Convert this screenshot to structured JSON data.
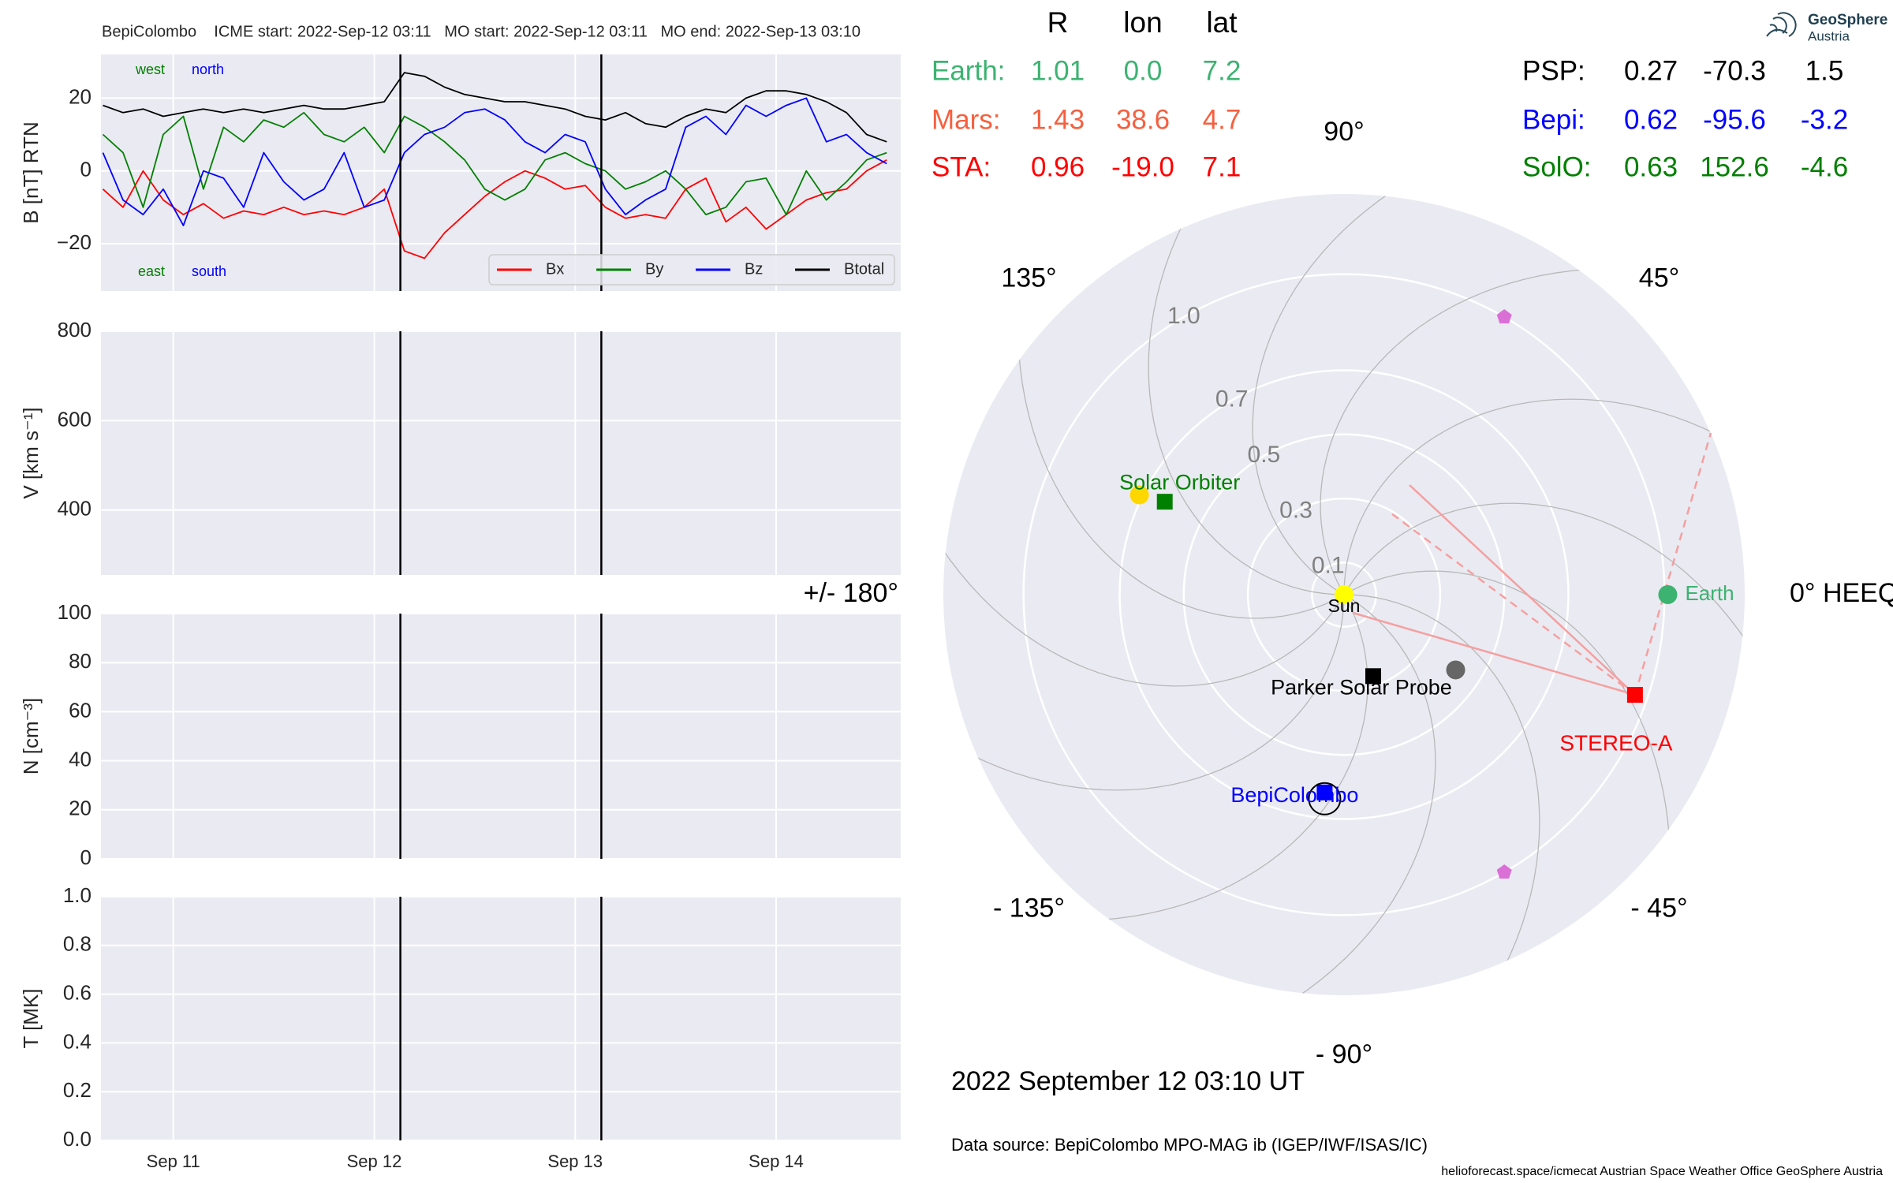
{
  "chart_data": [
    {
      "type": "line",
      "title": "BepiColombo    ICME start: 2022-Sep-12 03:11   MO start: 2022-Sep-12 03:11   MO end: 2022-Sep-13 03:10",
      "ylabel": "B [nT] RTN",
      "xlim": [
        10.64,
        14.62
      ],
      "xticks": [
        11,
        12,
        13,
        14
      ],
      "ylim": [
        -33,
        32
      ],
      "yticks": [
        {
          "value": -20,
          "label": "−20"
        },
        0,
        20
      ],
      "grid": true,
      "legend": "lower right",
      "vlines": [
        12.13,
        13.13
      ],
      "annotations": [
        {
          "text": "west",
          "color": "#008000"
        },
        {
          "text": "north",
          "color": "#0000ff"
        },
        {
          "text": "east",
          "color": "#008000"
        },
        {
          "text": "south",
          "color": "#0000ff"
        }
      ],
      "x": [
        10.65,
        10.75,
        10.85,
        10.95,
        11.05,
        11.15,
        11.25,
        11.35,
        11.45,
        11.55,
        11.65,
        11.75,
        11.85,
        11.95,
        12.05,
        12.15,
        12.25,
        12.35,
        12.45,
        12.55,
        12.65,
        12.75,
        12.85,
        12.95,
        13.05,
        13.15,
        13.25,
        13.35,
        13.45,
        13.55,
        13.65,
        13.75,
        13.85,
        13.95,
        14.05,
        14.15,
        14.25,
        14.35,
        14.45,
        14.55
      ],
      "series": [
        {
          "name": "Bx",
          "color": "#ff0000",
          "values": [
            -5,
            -10,
            0,
            -8,
            -12,
            -9,
            -13,
            -11,
            -12,
            -10,
            -12,
            -11,
            -12,
            -10,
            -5,
            -22,
            -24,
            -17,
            -12,
            -7,
            -3,
            0,
            -2,
            -5,
            -4,
            -10,
            -13,
            -12,
            -13,
            -5,
            -2,
            -14,
            -10,
            -16,
            -12,
            -8,
            -6,
            -5,
            0,
            3
          ]
        },
        {
          "name": "By",
          "color": "#008000",
          "values": [
            10,
            5,
            -10,
            10,
            15,
            -5,
            12,
            8,
            14,
            12,
            16,
            10,
            8,
            12,
            5,
            15,
            12,
            8,
            3,
            -5,
            -8,
            -5,
            3,
            5,
            2,
            0,
            -5,
            -3,
            0,
            -5,
            -12,
            -10,
            -3,
            -2,
            -12,
            0,
            -8,
            -3,
            3,
            5
          ]
        },
        {
          "name": "Bz",
          "color": "#0000ff",
          "values": [
            5,
            -8,
            -12,
            -5,
            -15,
            0,
            -2,
            -10,
            5,
            -3,
            -8,
            -5,
            5,
            -10,
            -8,
            5,
            10,
            12,
            16,
            17,
            14,
            8,
            5,
            10,
            8,
            -5,
            -12,
            -8,
            -5,
            12,
            15,
            10,
            18,
            15,
            18,
            20,
            8,
            10,
            5,
            2
          ]
        },
        {
          "name": "Btotal",
          "color": "#000000",
          "values": [
            18,
            16,
            17,
            15,
            16,
            17,
            16,
            17,
            16,
            17,
            18,
            17,
            17,
            18,
            19,
            27,
            26,
            23,
            21,
            20,
            19,
            19,
            18,
            17,
            15,
            14,
            16,
            13,
            12,
            15,
            17,
            16,
            20,
            22,
            22,
            21,
            19,
            16,
            10,
            8
          ]
        }
      ]
    },
    {
      "type": "line",
      "ylabel": "V [km s⁻¹]",
      "xlim": [
        10.64,
        14.62
      ],
      "xticks": [
        11,
        12,
        13,
        14
      ],
      "ylim": [
        255,
        800
      ],
      "yticks": [
        400,
        600,
        800
      ],
      "grid": true,
      "vlines": [
        12.13,
        13.13
      ]
    },
    {
      "type": "line",
      "ylabel": "N [cm⁻³]",
      "xlim": [
        10.64,
        14.62
      ],
      "xticks": [
        11,
        12,
        13,
        14
      ],
      "ylim": [
        0,
        100
      ],
      "yticks": [
        0,
        20,
        40,
        60,
        80,
        100
      ],
      "grid": true,
      "vlines": [
        12.13,
        13.13
      ]
    },
    {
      "type": "line",
      "ylabel": "T [MK]",
      "xlim": [
        10.64,
        14.62
      ],
      "xticks": [
        {
          "value": 11,
          "label": "Sep 11"
        },
        {
          "value": 12,
          "label": "Sep 12"
        },
        {
          "value": 13,
          "label": "Sep 13"
        },
        {
          "value": 14,
          "label": "Sep 14"
        }
      ],
      "ylim": [
        0,
        1
      ],
      "yticks": [
        {
          "value": 0,
          "label": "0.0"
        },
        0.2,
        0.4,
        0.6,
        0.8,
        {
          "value": 1,
          "label": "1.0"
        }
      ],
      "grid": true,
      "vlines": [
        12.13,
        13.13
      ]
    },
    {
      "type": "polar",
      "rlim": [
        0,
        1.25
      ],
      "rticks": [
        0.1,
        0.3,
        0.5,
        0.7,
        {
          "value": 1,
          "label": "1.0"
        }
      ],
      "thetaticks": [
        {
          "value": 0,
          "label": "0° HEEQ"
        },
        {
          "value": 45,
          "label": "45°"
        },
        {
          "value": 90,
          "label": "90°"
        },
        {
          "value": 135,
          "label": "135°"
        },
        {
          "value": 180,
          "label": "+/- 180°"
        },
        {
          "value": -135,
          "label": "- 135°"
        },
        {
          "value": -90,
          "label": "- 90°"
        },
        {
          "value": -45,
          "label": "- 45°"
        }
      ],
      "grid": true,
      "points": [
        {
          "label": "Sun",
          "r": 0,
          "lon": 0,
          "color": "#ffff00",
          "marker": "circle"
        },
        {
          "r": 0.71,
          "lon": 154,
          "color": "#ffd700",
          "marker": "circle"
        },
        {
          "r": 0.42,
          "lon": -34,
          "color": "#666666",
          "marker": "circle"
        },
        {
          "label": "Earth",
          "r": 1.01,
          "lon": 0,
          "color": "#3cb371",
          "marker": "circle"
        },
        {
          "label": "STEREO-A",
          "r": 0.96,
          "lon": -19,
          "color": "#ff0000",
          "marker": "square"
        },
        {
          "label": "Parker Solar Probe",
          "r": 0.27,
          "lon": -70.3,
          "color": "#000000",
          "marker": "square"
        },
        {
          "label": "BepiColombo",
          "r": 0.62,
          "lon": -95.6,
          "color": "#0000ff",
          "marker": "square",
          "ring": true
        },
        {
          "label": "Solar Orbiter",
          "r": 0.63,
          "lon": 152.6,
          "color": "#008000",
          "marker": "square"
        },
        {
          "r": 1,
          "lon": 60,
          "color": "#da70d6",
          "marker": "pentagon"
        },
        {
          "r": 1,
          "lon": -60,
          "color": "#da70d6",
          "marker": "pentagon"
        }
      ]
    }
  ],
  "table": {
    "columns": [
      "R",
      "lon",
      "lat"
    ],
    "rows": [
      {
        "name": "Earth:",
        "color": "#3cb371",
        "values": [
          "1.01",
          "0.0",
          "7.2"
        ]
      },
      {
        "name": "Mars:",
        "color": "#f5603f",
        "values": [
          "1.43",
          "38.6",
          "4.7"
        ]
      },
      {
        "name": "STA:",
        "color": "#ff0000",
        "values": [
          "0.96",
          "-19.0",
          "7.1"
        ]
      },
      {
        "name": "PSP:",
        "color": "#000000",
        "values": [
          "0.27",
          "-70.3",
          "1.5"
        ]
      },
      {
        "name": "Bepi:",
        "color": "#0000ff",
        "values": [
          "0.62",
          "-95.6",
          "-3.2"
        ]
      },
      {
        "name": "SolO:",
        "color": "#008000",
        "values": [
          "0.63",
          "152.6",
          "-4.6"
        ]
      }
    ]
  },
  "timestamp": "2022 September 12  03:10 UT",
  "source": "Data source: BepiColombo MPO-MAG ib (IGEP/IWF/ISAS/IC)",
  "footer": "helioforecast.space/icmecat   Austrian Space Weather Office   GeoSphere Austria",
  "logo": {
    "name": "GeoSphere",
    "sub": "Austria"
  }
}
